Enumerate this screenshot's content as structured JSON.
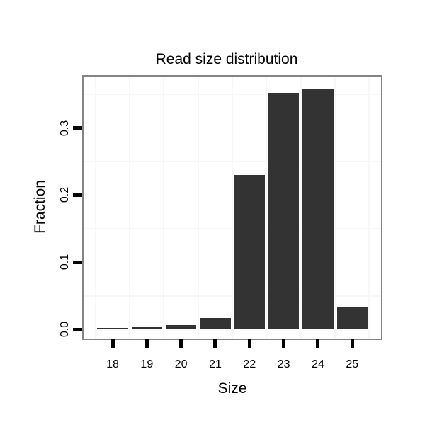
{
  "chart_data": {
    "type": "bar",
    "title": "Read size distribution",
    "xlabel": "Size",
    "ylabel": "Fraction",
    "categories": [
      "18",
      "19",
      "20",
      "21",
      "22",
      "23",
      "24",
      "25"
    ],
    "values": [
      0.002,
      0.003,
      0.0065,
      0.017,
      0.23,
      0.352,
      0.359,
      0.033
    ],
    "ytick_labels": [
      "0.0",
      "0.1",
      "0.2",
      "0.3"
    ],
    "yticks": [
      0.0,
      0.1,
      0.2,
      0.3
    ],
    "ylim": [
      -0.0127,
      0.3765
    ],
    "grid": "minor gridlines only, at half-step positions",
    "legend": "none",
    "bar_color": "#333333",
    "panel_border_color": "#858585",
    "grid_color": "#f7f7f7",
    "tick_color": "#000000",
    "text_color": "#000000",
    "background_color": "#ffffff"
  }
}
